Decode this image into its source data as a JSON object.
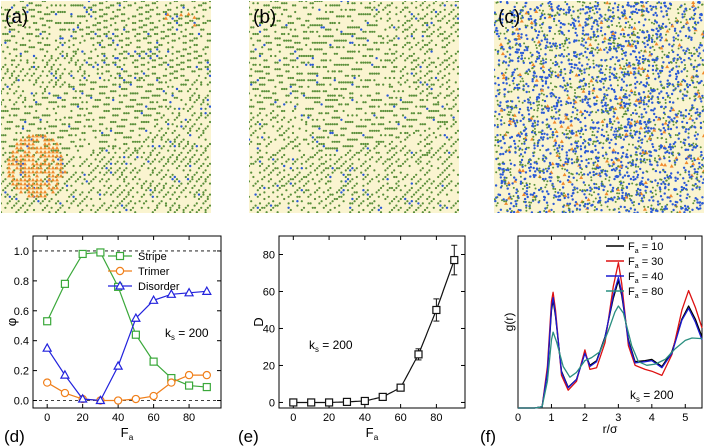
{
  "snapshots": [
    {
      "tag": "(a)",
      "palette": {
        "bg": "#faf4d0",
        "green": "#5a8f3a",
        "blue": "#2a5ad6",
        "orange": "#f08a2c"
      }
    },
    {
      "tag": "(b)",
      "palette": {
        "bg": "#faf4d0",
        "green": "#5a8f3a",
        "blue": "#2a5ad6",
        "orange": "#f08a2c"
      }
    },
    {
      "tag": "(c)",
      "palette": {
        "bg": "#faf4d0",
        "green": "#5a8f3a",
        "blue": "#2a5ad6",
        "orange": "#f08a2c"
      }
    }
  ],
  "chart_data": [
    {
      "panel": "(d)",
      "type": "line",
      "xlabel": "F",
      "xlabel_sub": "a",
      "ylabel": "φ",
      "xlim": [
        -8,
        98
      ],
      "ylim": [
        -0.05,
        1.1
      ],
      "xticks": [
        0,
        20,
        40,
        60,
        80
      ],
      "yticks": [
        0.0,
        0.2,
        0.4,
        0.6,
        0.8,
        1.0
      ],
      "ytick_labels": [
        "0.0",
        "0.2",
        "0.4",
        "0.6",
        "0.8",
        "1.0"
      ],
      "ref_lines": [
        0.0,
        1.0
      ],
      "x": [
        0,
        10,
        20,
        30,
        40,
        50,
        60,
        70,
        80,
        90
      ],
      "series": [
        {
          "name": "Stripe",
          "color": "#3aa83a",
          "marker": "square",
          "values": [
            0.53,
            0.78,
            0.98,
            0.99,
            0.76,
            0.44,
            0.26,
            0.15,
            0.1,
            0.09
          ]
        },
        {
          "name": "Trimer",
          "color": "#f07f1a",
          "marker": "circle",
          "values": [
            0.12,
            0.05,
            0.01,
            0.0,
            0.0,
            0.01,
            0.03,
            0.12,
            0.17,
            0.17
          ]
        },
        {
          "name": "Disorder",
          "color": "#2222dd",
          "marker": "triangle",
          "values": [
            0.35,
            0.17,
            0.01,
            0.0,
            0.23,
            0.55,
            0.67,
            0.71,
            0.72,
            0.73
          ]
        }
      ],
      "legend_position": "top-right",
      "annotation": {
        "main": "k",
        "sub": "s",
        "rest": " = 200"
      }
    },
    {
      "panel": "(e)",
      "type": "line",
      "xlabel": "F",
      "xlabel_sub": "a",
      "ylabel": "D",
      "xlim": [
        -8,
        96
      ],
      "ylim": [
        -3,
        90
      ],
      "xticks": [
        0,
        20,
        40,
        60,
        80
      ],
      "yticks": [
        0,
        20,
        40,
        60,
        80
      ],
      "ytick_labels": [
        "0",
        "20",
        "40",
        "60",
        "80"
      ],
      "x": [
        0,
        10,
        20,
        30,
        40,
        50,
        60,
        70,
        80,
        90
      ],
      "series": [
        {
          "name": "",
          "color": "#111111",
          "marker": "square",
          "values": [
            0,
            0,
            0,
            0.3,
            0.8,
            3,
            8,
            26,
            50,
            77
          ],
          "errors": [
            0,
            0,
            0,
            0.3,
            0.4,
            0.8,
            1.5,
            3,
            6,
            8
          ]
        }
      ],
      "annotation": {
        "main": "k",
        "sub": "s",
        "rest": " = 200"
      }
    },
    {
      "panel": "(f)",
      "type": "line",
      "xlabel": "r/σ",
      "ylabel": "g(r)",
      "xlim": [
        0,
        5.5
      ],
      "ylim": [
        0,
        2.9
      ],
      "xticks": [
        0,
        1,
        2,
        3,
        4,
        5
      ],
      "yticks": [],
      "series": [
        {
          "name": "10",
          "color": "#000000",
          "points": [
            [
              0,
              0
            ],
            [
              0.5,
              0
            ],
            [
              0.72,
              0.02
            ],
            [
              0.88,
              0.6
            ],
            [
              1.0,
              1.65
            ],
            [
              1.05,
              1.82
            ],
            [
              1.12,
              1.55
            ],
            [
              1.3,
              0.62
            ],
            [
              1.5,
              0.35
            ],
            [
              1.75,
              0.48
            ],
            [
              2.0,
              0.93
            ],
            [
              2.15,
              0.72
            ],
            [
              2.35,
              0.8
            ],
            [
              2.6,
              1.2
            ],
            [
              2.85,
              1.85
            ],
            [
              3.0,
              2.15
            ],
            [
              3.1,
              1.9
            ],
            [
              3.3,
              1.15
            ],
            [
              3.5,
              0.78
            ],
            [
              3.8,
              0.8
            ],
            [
              4.0,
              0.82
            ],
            [
              4.3,
              0.7
            ],
            [
              4.6,
              0.95
            ],
            [
              4.9,
              1.5
            ],
            [
              5.1,
              1.72
            ],
            [
              5.3,
              1.5
            ],
            [
              5.5,
              1.2
            ]
          ]
        },
        {
          "name": "30",
          "color": "#dd1111",
          "points": [
            [
              0,
              0
            ],
            [
              0.5,
              0
            ],
            [
              0.72,
              0.02
            ],
            [
              0.88,
              0.7
            ],
            [
              1.0,
              1.8
            ],
            [
              1.05,
              1.95
            ],
            [
              1.12,
              1.65
            ],
            [
              1.3,
              0.55
            ],
            [
              1.5,
              0.3
            ],
            [
              1.75,
              0.45
            ],
            [
              2.0,
              0.98
            ],
            [
              2.15,
              0.65
            ],
            [
              2.35,
              0.68
            ],
            [
              2.6,
              1.1
            ],
            [
              2.85,
              2.05
            ],
            [
              3.0,
              2.45
            ],
            [
              3.1,
              2.1
            ],
            [
              3.3,
              1.05
            ],
            [
              3.5,
              0.72
            ],
            [
              3.8,
              0.65
            ],
            [
              4.0,
              0.62
            ],
            [
              4.3,
              0.55
            ],
            [
              4.6,
              0.9
            ],
            [
              4.9,
              1.65
            ],
            [
              5.1,
              1.98
            ],
            [
              5.3,
              1.7
            ],
            [
              5.5,
              1.35
            ]
          ]
        },
        {
          "name": "40",
          "color": "#1a1ad0",
          "points": [
            [
              0,
              0
            ],
            [
              0.5,
              0
            ],
            [
              0.72,
              0.02
            ],
            [
              0.88,
              0.62
            ],
            [
              1.0,
              1.7
            ],
            [
              1.05,
              1.86
            ],
            [
              1.12,
              1.58
            ],
            [
              1.3,
              0.6
            ],
            [
              1.5,
              0.34
            ],
            [
              1.75,
              0.48
            ],
            [
              2.0,
              0.92
            ],
            [
              2.15,
              0.7
            ],
            [
              2.35,
              0.78
            ],
            [
              2.6,
              1.18
            ],
            [
              2.85,
              1.9
            ],
            [
              3.0,
              2.2
            ],
            [
              3.1,
              1.95
            ],
            [
              3.3,
              1.12
            ],
            [
              3.5,
              0.76
            ],
            [
              3.8,
              0.78
            ],
            [
              4.0,
              0.8
            ],
            [
              4.3,
              0.68
            ],
            [
              4.6,
              0.92
            ],
            [
              4.9,
              1.48
            ],
            [
              5.1,
              1.68
            ],
            [
              5.3,
              1.45
            ],
            [
              5.5,
              1.15
            ]
          ]
        },
        {
          "name": "80",
          "color": "#2a8f80",
          "points": [
            [
              0,
              0
            ],
            [
              0.5,
              0
            ],
            [
              0.72,
              0.02
            ],
            [
              0.88,
              0.45
            ],
            [
              1.0,
              1.15
            ],
            [
              1.05,
              1.28
            ],
            [
              1.15,
              1.12
            ],
            [
              1.35,
              0.7
            ],
            [
              1.55,
              0.52
            ],
            [
              1.75,
              0.6
            ],
            [
              2.0,
              0.8
            ],
            [
              2.2,
              0.85
            ],
            [
              2.45,
              0.95
            ],
            [
              2.7,
              1.3
            ],
            [
              2.9,
              1.62
            ],
            [
              3.0,
              1.72
            ],
            [
              3.15,
              1.6
            ],
            [
              3.4,
              1.05
            ],
            [
              3.6,
              0.78
            ],
            [
              3.85,
              0.72
            ],
            [
              4.1,
              0.74
            ],
            [
              4.4,
              0.82
            ],
            [
              4.7,
              1.0
            ],
            [
              5.0,
              1.14
            ],
            [
              5.2,
              1.18
            ],
            [
              5.5,
              1.17
            ]
          ]
        }
      ],
      "legend_prefix": {
        "main": "F",
        "sub": "a",
        "eq": " = "
      },
      "legend_position": "top-right",
      "annotation": {
        "main": "k",
        "sub": "s",
        "rest": " = 200"
      }
    }
  ]
}
